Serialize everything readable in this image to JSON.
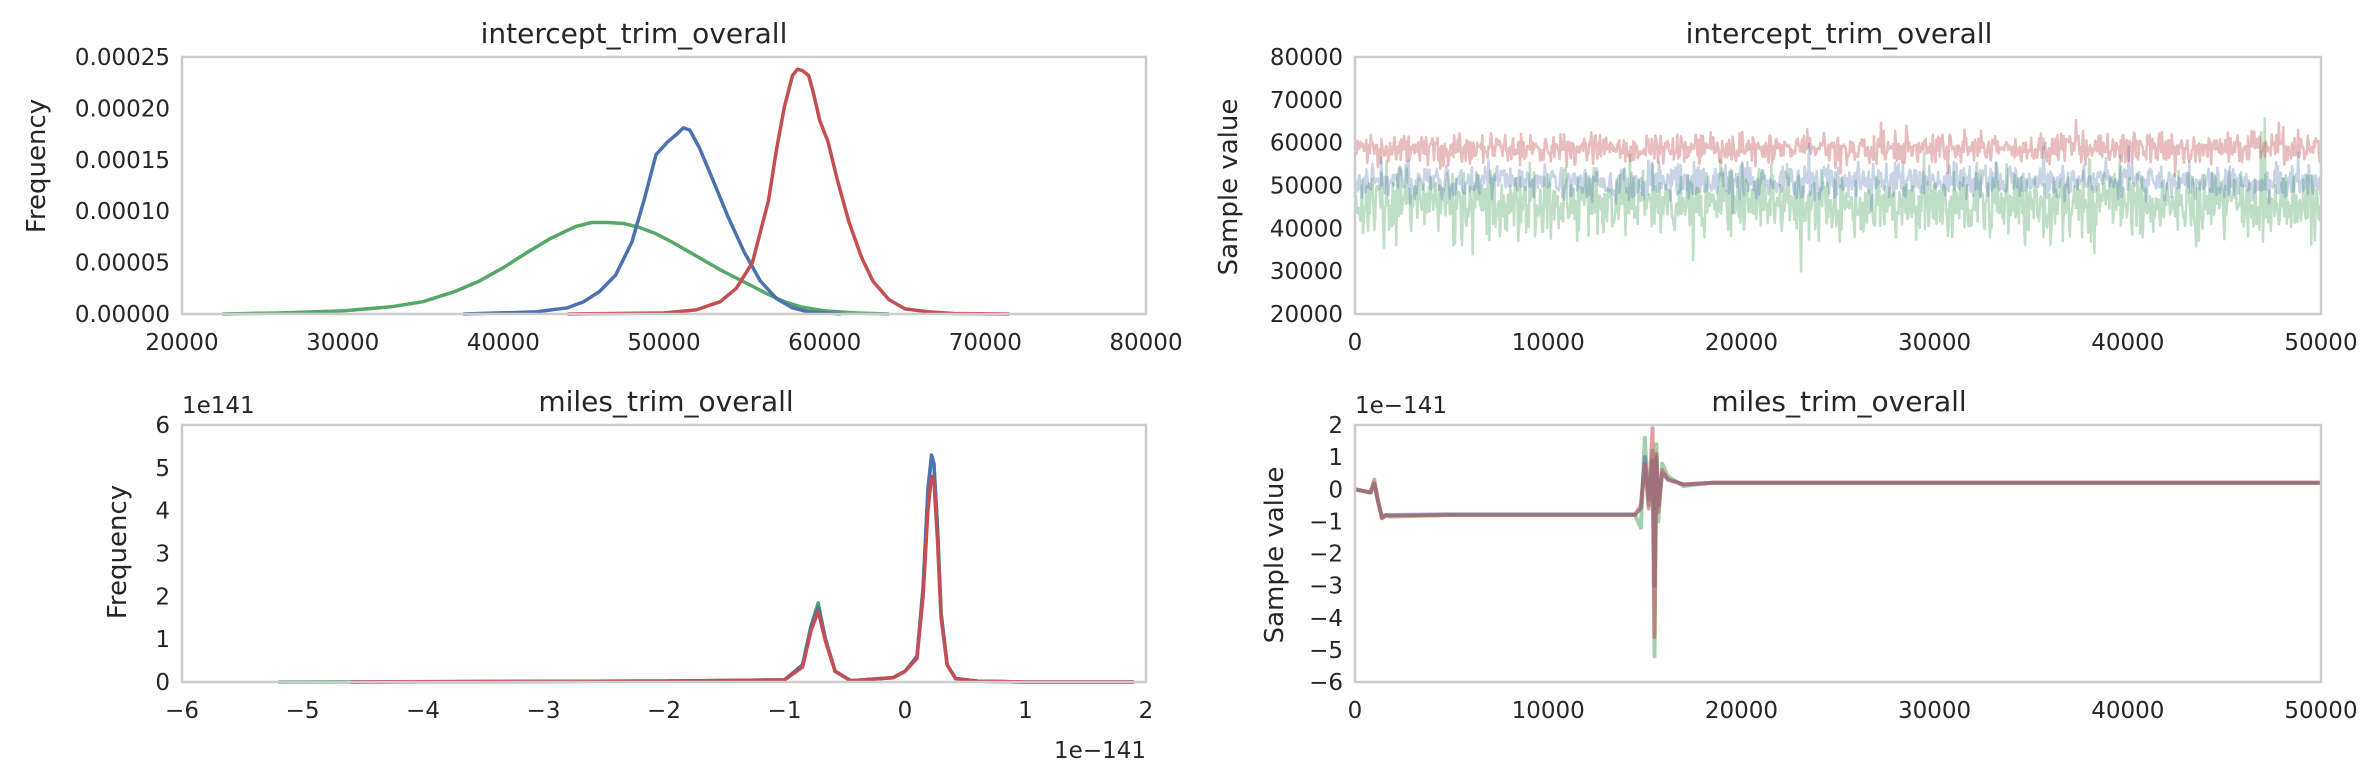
{
  "colors": {
    "blue": "#4c72b0",
    "green": "#55a868",
    "red": "#c44e52"
  },
  "chart_data": [
    {
      "type": "line",
      "panel": "density-intercept",
      "title": "intercept_trim_overall",
      "xlabel": "",
      "ylabel": "Frequency",
      "xlim": [
        20000,
        80000
      ],
      "ylim": [
        0,
        0.00025
      ],
      "xticks": [
        "20000",
        "30000",
        "40000",
        "50000",
        "60000",
        "70000",
        "80000"
      ],
      "yticks": [
        "0.00000",
        "0.00005",
        "0.00010",
        "0.00015",
        "0.00020",
        "0.00025"
      ],
      "grid": false,
      "series": [
        {
          "color": "green",
          "x": [
            22500,
            26000,
            30000,
            33000,
            35000,
            37000,
            38500,
            40000,
            41500,
            43000,
            44500,
            45500,
            46500,
            47500,
            48500,
            49500,
            50500,
            51500,
            52500,
            53500,
            54500,
            55500,
            56500,
            57500,
            58500,
            60000,
            62000,
            64000
          ],
          "values": [
            0,
            1e-06,
            3e-06,
            7e-06,
            1.2e-05,
            2.2e-05,
            3.2e-05,
            4.5e-05,
            6e-05,
            7.4e-05,
            8.5e-05,
            8.9e-05,
            8.9e-05,
            8.8e-05,
            8.4e-05,
            7.8e-05,
            7e-05,
            6.1e-05,
            5.2e-05,
            4.3e-05,
            3.5e-05,
            2.7e-05,
            1.9e-05,
            1.2e-05,
            7e-06,
            3e-06,
            1e-06,
            0
          ]
        },
        {
          "color": "blue",
          "x": [
            37500,
            42000,
            44000,
            45000,
            46000,
            47000,
            48000,
            48800,
            49500,
            50200,
            50800,
            51200,
            51600,
            52200,
            53000,
            54000,
            55000,
            56000,
            57000,
            58000,
            59000,
            61000
          ],
          "values": [
            0,
            2e-06,
            6e-06,
            1.2e-05,
            2.2e-05,
            3.8e-05,
            7e-05,
            0.000113,
            0.000155,
            0.000167,
            0.000175,
            0.000181,
            0.000179,
            0.000162,
            0.000132,
            9.4e-05,
            6e-05,
            3.2e-05,
            1.5e-05,
            6e-06,
            2e-06,
            0
          ]
        },
        {
          "color": "red",
          "x": [
            44000,
            50000,
            52000,
            53500,
            54500,
            55500,
            56500,
            57000,
            57500,
            58000,
            58300,
            58600,
            59000,
            59300,
            59700,
            60200,
            60800,
            61500,
            62300,
            63000,
            64000,
            65000,
            66500,
            68000,
            71500
          ],
          "values": [
            0,
            1e-06,
            4e-06,
            1.2e-05,
            2.5e-05,
            5e-05,
            0.00011,
            0.00016,
            0.000202,
            0.000232,
            0.000238,
            0.000237,
            0.000232,
            0.000215,
            0.000188,
            0.000168,
            0.00013,
            9e-05,
            5.5e-05,
            3.2e-05,
            1.4e-05,
            5e-06,
            2e-06,
            5e-07,
            0
          ]
        }
      ]
    },
    {
      "type": "line",
      "panel": "trace-intercept",
      "title": "intercept_trim_overall",
      "xlabel": "",
      "ylabel": "Sample value",
      "xlim": [
        0,
        50000
      ],
      "ylim": [
        20000,
        80000
      ],
      "xticks": [
        "0",
        "10000",
        "20000",
        "30000",
        "40000",
        "50000"
      ],
      "yticks": [
        "20000",
        "30000",
        "40000",
        "50000",
        "60000",
        "70000",
        "80000"
      ],
      "grid": false,
      "series": [
        {
          "color": "green",
          "mean": 46000,
          "sd": 5500,
          "min": 23000,
          "max": 68000
        },
        {
          "color": "blue",
          "mean": 51000,
          "sd": 2800,
          "min": 42000,
          "max": 61000
        },
        {
          "color": "red",
          "mean": 58600,
          "sd": 2400,
          "min": 50000,
          "max": 71500
        }
      ]
    },
    {
      "type": "line",
      "panel": "density-miles",
      "title": "miles_trim_overall",
      "xlabel": "",
      "ylabel": "Frequency",
      "x_offset": "1e−141",
      "y_offset": "1e141",
      "xlim": [
        -6,
        2
      ],
      "ylim": [
        0,
        6
      ],
      "xticks": [
        "−6",
        "−5",
        "−4",
        "−3",
        "−2",
        "−1",
        "0",
        "1",
        "2"
      ],
      "yticks": [
        "0",
        "1",
        "2",
        "3",
        "4",
        "5",
        "6"
      ],
      "grid": false,
      "series": [
        {
          "color": "green",
          "x": [
            -5.2,
            -2,
            -1.0,
            -0.85,
            -0.78,
            -0.72,
            -0.66,
            -0.58,
            -0.45,
            -0.1,
            0.0,
            0.1,
            0.15,
            0.19,
            0.22,
            0.24,
            0.27,
            0.3,
            0.35,
            0.42,
            0.6,
            1.0,
            1.9
          ],
          "values": [
            0,
            0.02,
            0.05,
            0.4,
            1.3,
            1.85,
            1.0,
            0.25,
            0.03,
            0.1,
            0.25,
            0.6,
            2.2,
            4.4,
            5.25,
            5.1,
            3.6,
            1.6,
            0.4,
            0.08,
            0.02,
            0,
            0
          ]
        },
        {
          "color": "blue",
          "x": [
            -4.6,
            -2,
            -1.0,
            -0.85,
            -0.78,
            -0.72,
            -0.66,
            -0.58,
            -0.45,
            -0.1,
            0.0,
            0.1,
            0.15,
            0.19,
            0.22,
            0.24,
            0.27,
            0.3,
            0.35,
            0.42,
            0.6,
            1.0,
            1.9
          ],
          "values": [
            0,
            0.02,
            0.05,
            0.4,
            1.3,
            1.75,
            1.0,
            0.25,
            0.03,
            0.1,
            0.25,
            0.6,
            2.2,
            4.5,
            5.3,
            5.1,
            3.6,
            1.6,
            0.4,
            0.08,
            0.02,
            0,
            0
          ]
        },
        {
          "color": "red",
          "x": [
            -4.6,
            -2,
            -1.0,
            -0.85,
            -0.78,
            -0.72,
            -0.66,
            -0.58,
            -0.45,
            -0.1,
            0.0,
            0.1,
            0.15,
            0.19,
            0.22,
            0.24,
            0.27,
            0.3,
            0.35,
            0.42,
            0.6,
            1.0,
            1.9
          ],
          "values": [
            0,
            0.02,
            0.05,
            0.35,
            1.2,
            1.65,
            0.95,
            0.25,
            0.03,
            0.1,
            0.25,
            0.55,
            2.0,
            4.0,
            4.8,
            4.7,
            3.3,
            1.5,
            0.4,
            0.08,
            0.02,
            0,
            0
          ]
        }
      ]
    },
    {
      "type": "line",
      "panel": "trace-miles",
      "title": "miles_trim_overall",
      "xlabel": "",
      "ylabel": "Sample value",
      "y_offset": "1e−141",
      "xlim": [
        0,
        50000
      ],
      "ylim": [
        -6,
        2
      ],
      "xticks": [
        "0",
        "10000",
        "20000",
        "30000",
        "40000",
        "50000"
      ],
      "yticks": [
        "−6",
        "−5",
        "−4",
        "−3",
        "−2",
        "−1",
        "0",
        "1",
        "2"
      ],
      "grid": false,
      "series": [
        {
          "color": "green",
          "x": [
            0,
            800,
            1000,
            1200,
            1400,
            1600,
            1800,
            5000,
            10000,
            14500,
            14800,
            15000,
            15200,
            15400,
            15500,
            15600,
            15700,
            15900,
            16200,
            17000,
            18500,
            20000,
            50000
          ],
          "values": [
            0.0,
            -0.1,
            0.2,
            -0.4,
            -0.9,
            -0.8,
            -0.85,
            -0.8,
            -0.8,
            -0.8,
            -1.2,
            1.6,
            -0.5,
            1.2,
            -5.2,
            1.4,
            -1.0,
            0.8,
            0.4,
            0.1,
            0.2,
            0.2,
            0.2
          ]
        },
        {
          "color": "blue",
          "x": [
            0,
            800,
            1000,
            1200,
            1400,
            1600,
            1800,
            5000,
            10000,
            14500,
            14800,
            15000,
            15200,
            15400,
            15500,
            15600,
            15700,
            15900,
            16200,
            17000,
            18500,
            20000,
            50000
          ],
          "values": [
            0.0,
            -0.1,
            0.15,
            -0.4,
            -0.85,
            -0.8,
            -0.8,
            -0.78,
            -0.78,
            -0.78,
            -0.6,
            1.0,
            -0.3,
            0.9,
            -3.0,
            1.0,
            -0.5,
            0.5,
            0.3,
            0.15,
            0.2,
            0.2,
            0.2
          ]
        },
        {
          "color": "red",
          "x": [
            0,
            800,
            1000,
            1200,
            1400,
            1600,
            1800,
            5000,
            10000,
            14500,
            14800,
            15000,
            15200,
            15400,
            15500,
            15600,
            15700,
            15900,
            16200,
            17000,
            18500,
            20000,
            50000
          ],
          "values": [
            0.0,
            -0.1,
            0.3,
            -0.4,
            -0.9,
            -0.82,
            -0.82,
            -0.8,
            -0.8,
            -0.8,
            -0.5,
            0.8,
            -0.6,
            1.9,
            -4.6,
            1.1,
            -0.7,
            0.6,
            0.3,
            0.15,
            0.2,
            0.2,
            0.2
          ]
        }
      ]
    }
  ]
}
